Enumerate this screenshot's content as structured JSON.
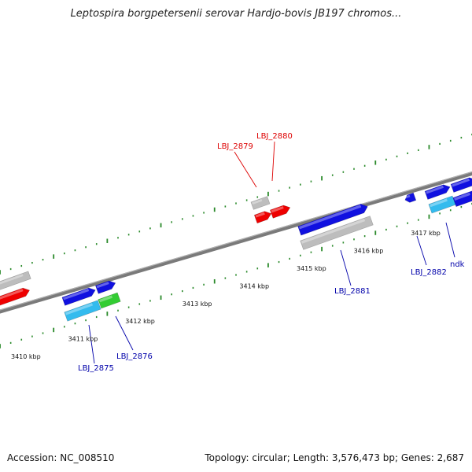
{
  "title": "Leptospira borgpetersenii serovar Hardjo-bovis JB197 chromos...",
  "footer": {
    "accession": "Accession: NC_008510",
    "summary": "Topology: circular; Length: 3,576,473 bp; Genes: 2,687"
  },
  "colors": {
    "backbone": "#7a7a7a",
    "tick": "#2a8a2a",
    "label_red": "#dd0000",
    "label_blue": "#0000aa",
    "gene_blue": "#1010e0",
    "gene_red": "#ee0000",
    "gene_gray": "#bdbdbd",
    "gene_cyan": "#33bbee",
    "gene_green": "#33cc33"
  },
  "scale": {
    "ticks": [
      {
        "kbp": 3410,
        "label": "3410 kbp"
      },
      {
        "kbp": 3411,
        "label": "3411 kbp"
      },
      {
        "kbp": 3412,
        "label": "3412 kbp"
      },
      {
        "kbp": 3413,
        "label": "3413 kbp"
      },
      {
        "kbp": 3414,
        "label": "3414 kbp"
      },
      {
        "kbp": 3415,
        "label": "3415 kbp"
      },
      {
        "kbp": 3416,
        "label": "3416 kbp"
      },
      {
        "kbp": 3417,
        "label": "3417 kbp"
      }
    ]
  },
  "gene_labels": [
    {
      "text": "LBJ_2880",
      "color": "label_red"
    },
    {
      "text": "LBJ_2879",
      "color": "label_red"
    },
    {
      "text": "LBJ_2881",
      "color": "label_blue"
    },
    {
      "text": "LBJ_2882",
      "color": "label_blue"
    },
    {
      "text": "ndk",
      "color": "label_blue"
    },
    {
      "text": "LBJ_2876",
      "color": "label_blue"
    },
    {
      "text": "LBJ_2875",
      "color": "label_blue"
    }
  ]
}
